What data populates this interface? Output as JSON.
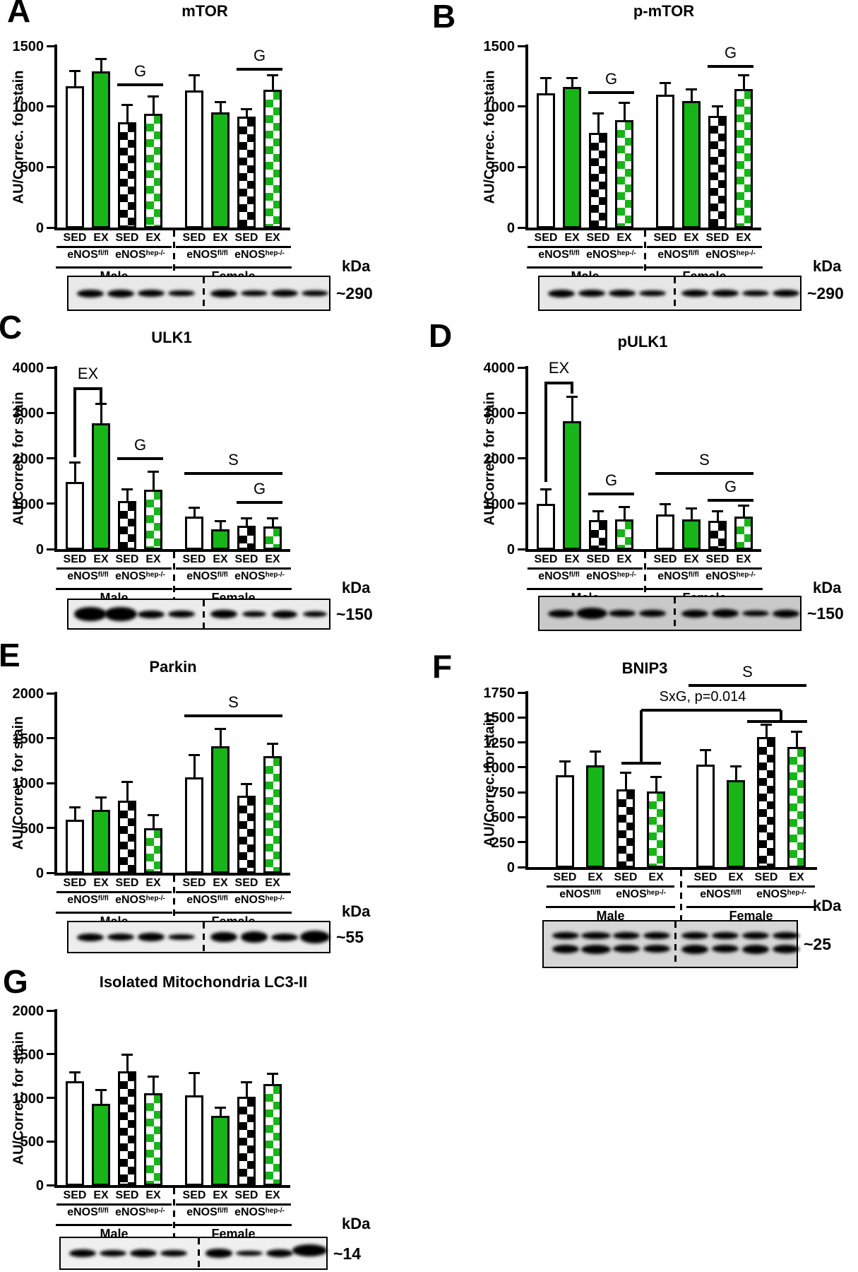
{
  "shared": {
    "kda_header": "kDa",
    "ylabel": "AU/Correc. for stain",
    "condition_labels": [
      "SED",
      "EX"
    ],
    "genotypes": [
      {
        "base": "eNOS",
        "sup": "fl/fl"
      },
      {
        "base": "eNOS",
        "sup": "hep-/-"
      }
    ],
    "sexes": [
      "Male",
      "Female"
    ],
    "bar_styles": [
      "open",
      "green",
      "bcheck",
      "gcheck",
      "open",
      "green",
      "bcheck",
      "gcheck"
    ],
    "accent_green": "#17b517",
    "categories": [
      "Male eNOSfl/fl SED",
      "Male eNOSfl/fl EX",
      "Male eNOShep-/- SED",
      "Male eNOShep-/- EX",
      "Female eNOSfl/fl SED",
      "Female eNOSfl/fl EX",
      "Female eNOShep-/- SED",
      "Female eNOShep-/- EX"
    ]
  },
  "chart_data": [
    {
      "panel": "A",
      "type": "bar",
      "title": "mTOR",
      "ylabel": "AU/Correc. for stain",
      "ylim": [
        0,
        1500
      ],
      "yticks": [
        "0",
        "500",
        "1000",
        "1500"
      ],
      "categories": [
        "Male eNOSfl/fl SED",
        "Male eNOSfl/fl EX",
        "Male eNOShep-/- SED",
        "Male eNOShep-/- EX",
        "Female eNOSfl/fl SED",
        "Female eNOSfl/fl EX",
        "Female eNOShep-/- SED",
        "Female eNOShep-/- EX"
      ],
      "values": [
        1170,
        1290,
        870,
        940,
        1130,
        950,
        915,
        1140
      ],
      "errors": [
        120,
        100,
        140,
        140,
        125,
        85,
        60,
        115
      ],
      "sig": [
        {
          "type": "line",
          "label": "G",
          "a": 2,
          "b": 3,
          "y": 1180
        },
        {
          "type": "line",
          "label": "G",
          "a": 6,
          "b": 7,
          "y": 1310
        }
      ],
      "blot": {
        "kda_label": "~290",
        "bg": "#e9e9e9",
        "bands": [
          [
            0.95,
            1,
            1,
            0
          ],
          [
            0.8,
            1,
            1,
            0
          ],
          [
            0.62,
            1,
            0.9,
            0
          ],
          [
            0.5,
            1,
            0.8,
            0
          ],
          [
            0.88,
            1,
            1,
            0
          ],
          [
            0.55,
            1,
            0.8,
            0
          ],
          [
            0.78,
            1,
            0.95,
            0
          ],
          [
            0.58,
            1,
            0.8,
            0
          ]
        ]
      }
    },
    {
      "panel": "B",
      "type": "bar",
      "title": "p-mTOR",
      "ylabel": "AU/Correc. for stain",
      "ylim": [
        0,
        1500
      ],
      "yticks": [
        "0",
        "500",
        "1000",
        "1500"
      ],
      "categories": [
        "Male eNOSfl/fl SED",
        "Male eNOSfl/fl EX",
        "Male eNOShep-/- SED",
        "Male eNOShep-/- EX",
        "Female eNOSfl/fl SED",
        "Female eNOSfl/fl EX",
        "Female eNOShep-/- SED",
        "Female eNOShep-/- EX"
      ],
      "values": [
        1110,
        1160,
        780,
        890,
        1100,
        1045,
        920,
        1145
      ],
      "errors": [
        125,
        75,
        160,
        140,
        95,
        95,
        80,
        110
      ],
      "sig": [
        {
          "type": "line",
          "label": "G",
          "a": 2,
          "b": 3,
          "y": 1115
        },
        {
          "type": "line",
          "label": "G",
          "a": 6,
          "b": 7,
          "y": 1330
        }
      ],
      "blot": {
        "kda_label": "~290",
        "bg": "#e7e7e7",
        "bands": [
          [
            0.9,
            1,
            1,
            0
          ],
          [
            0.78,
            1,
            0.9,
            0
          ],
          [
            0.78,
            1,
            0.9,
            0
          ],
          [
            0.55,
            1,
            0.8,
            0
          ],
          [
            0.82,
            1,
            0.9,
            0
          ],
          [
            0.68,
            1,
            0.85,
            0
          ],
          [
            0.62,
            1,
            0.8,
            0
          ],
          [
            0.85,
            1,
            0.95,
            0
          ]
        ]
      }
    },
    {
      "panel": "C",
      "type": "bar",
      "title": "ULK1",
      "ylabel": "AU/Correc. for stain",
      "ylim": [
        0,
        4000
      ],
      "yticks": [
        "0",
        "1000",
        "2000",
        "3000",
        "4000"
      ],
      "categories": [
        "Male eNOSfl/fl SED",
        "Male eNOSfl/fl EX",
        "Male eNOShep-/- SED",
        "Male eNOShep-/- EX",
        "Female eNOSfl/fl SED",
        "Female eNOSfl/fl EX",
        "Female eNOShep-/- SED",
        "Female eNOShep-/- EX"
      ],
      "values": [
        1480,
        2770,
        1060,
        1310,
        720,
        430,
        520,
        500
      ],
      "errors": [
        420,
        430,
        260,
        400,
        190,
        190,
        160,
        180
      ],
      "sig": [
        {
          "type": "exbracket",
          "label": "EX",
          "a": 0,
          "b": 1,
          "top": 3530,
          "adrop": 2020,
          "bdrop": 3220
        },
        {
          "type": "line",
          "label": "G",
          "a": 2,
          "b": 3,
          "y": 2000
        },
        {
          "type": "line",
          "label": "S",
          "a": 4,
          "b": 7,
          "y": 1670
        },
        {
          "type": "line",
          "label": "G",
          "a": 6,
          "b": 7,
          "y": 1030
        }
      ],
      "blot": {
        "kda_label": "~150",
        "bg": "#ececec",
        "bands": [
          [
            1,
            1.2,
            1.8,
            0
          ],
          [
            1,
            1.2,
            1.8,
            0
          ],
          [
            0.42,
            1,
            1,
            0
          ],
          [
            0.15,
            1,
            0.9,
            0
          ],
          [
            0.68,
            1,
            1.15,
            0
          ],
          [
            0.12,
            0.9,
            0.8,
            0
          ],
          [
            0.42,
            0.95,
            1,
            0
          ],
          [
            0.06,
            0.9,
            0.7,
            0
          ]
        ]
      }
    },
    {
      "panel": "D",
      "type": "bar",
      "title": "pULK1",
      "ylabel": "AU/Correc. for stain",
      "ylim": [
        0,
        4000
      ],
      "yticks": [
        "0",
        "1000",
        "2000",
        "3000",
        "4000"
      ],
      "categories": [
        "Male eNOSfl/fl SED",
        "Male eNOSfl/fl EX",
        "Male eNOShep-/- SED",
        "Male eNOShep-/- EX",
        "Female eNOSfl/fl SED",
        "Female eNOSfl/fl EX",
        "Female eNOShep-/- SED",
        "Female eNOShep-/- EX"
      ],
      "values": [
        1000,
        2810,
        640,
        660,
        770,
        660,
        630,
        710
      ],
      "errors": [
        320,
        540,
        200,
        260,
        220,
        240,
        210,
        240
      ],
      "sig": [
        {
          "type": "exbracket",
          "label": "EX",
          "a": 0,
          "b": 1,
          "top": 3660,
          "adrop": 1480,
          "bdrop": 3420
        },
        {
          "type": "line",
          "label": "G",
          "a": 2,
          "b": 3,
          "y": 1210
        },
        {
          "type": "line",
          "label": "S",
          "a": 4,
          "b": 7,
          "y": 1670
        },
        {
          "type": "line",
          "label": "G",
          "a": 6,
          "b": 7,
          "y": 1070
        }
      ],
      "blot": {
        "kda_label": "~150",
        "bg": "#c9c9c9",
        "bands": [
          [
            0.5,
            1,
            1,
            0
          ],
          [
            0.97,
            1.15,
            1.5,
            0
          ],
          [
            0.3,
            1,
            0.9,
            0
          ],
          [
            0.35,
            1,
            0.9,
            0
          ],
          [
            0.55,
            1,
            1,
            0
          ],
          [
            0.62,
            1,
            1.1,
            0
          ],
          [
            0.18,
            1,
            0.8,
            0
          ],
          [
            0.45,
            1,
            1,
            0
          ]
        ]
      }
    },
    {
      "panel": "E",
      "type": "bar",
      "title": "Parkin",
      "ylabel": "AU/Correc. for stain",
      "ylim": [
        0,
        2000
      ],
      "yticks": [
        "0",
        "500",
        "1000",
        "1500",
        "2000"
      ],
      "categories": [
        "Male eNOSfl/fl SED",
        "Male eNOSfl/fl EX",
        "Male eNOShep-/- SED",
        "Male eNOShep-/- EX",
        "Female eNOSfl/fl SED",
        "Female eNOSfl/fl EX",
        "Female eNOShep-/- SED",
        "Female eNOShep-/- EX"
      ],
      "values": [
        590,
        700,
        800,
        495,
        1060,
        1410,
        860,
        1300
      ],
      "errors": [
        140,
        140,
        210,
        145,
        250,
        190,
        125,
        140
      ],
      "sig": [
        {
          "type": "line",
          "label": "S",
          "a": 4,
          "b": 7,
          "y": 1750
        }
      ],
      "blot": {
        "kda_label": "~55",
        "bg": "#ededed",
        "bands": [
          [
            0.55,
            1,
            1,
            0
          ],
          [
            0.32,
            1,
            0.9,
            0
          ],
          [
            0.62,
            1,
            1.15,
            0
          ],
          [
            0.06,
            1,
            0.7,
            0
          ],
          [
            0.85,
            1,
            1.35,
            0
          ],
          [
            0.9,
            1,
            1.4,
            0
          ],
          [
            0.55,
            1,
            1,
            0
          ],
          [
            0.97,
            1.1,
            1.6,
            0
          ]
        ]
      }
    },
    {
      "panel": "F",
      "type": "bar",
      "title": "BNIP3",
      "ylabel": "AU/Correc. for stain",
      "ylim": [
        0,
        1750
      ],
      "yticks": [
        "0",
        "250",
        "500",
        "750",
        "1000",
        "1250",
        "1500",
        "1750"
      ],
      "categories": [
        "Male eNOSfl/fl SED",
        "Male eNOSfl/fl EX",
        "Male eNOShep-/- SED",
        "Male eNOShep-/- EX",
        "Female eNOSfl/fl SED",
        "Female eNOSfl/fl EX",
        "Female eNOShep-/- SED",
        "Female eNOShep-/- EX"
      ],
      "values": [
        920,
        1020,
        780,
        755,
        1030,
        870,
        1305,
        1205
      ],
      "errors": [
        140,
        135,
        165,
        150,
        145,
        140,
        120,
        155
      ],
      "sig": [
        {
          "type": "line",
          "label": "S",
          "a": 4,
          "b": 7,
          "y": 1820,
          "x1off": -10
        },
        {
          "type": "sxg",
          "label": "SxG, p=0.014"
        }
      ],
      "blot": {
        "kda_label": "~25",
        "bg": "#d6d6d6",
        "double": true,
        "bands": [
          [
            0.6,
            1,
            1,
            0
          ],
          [
            0.95,
            1.1,
            1.1,
            0
          ],
          [
            0.35,
            1,
            0.9,
            0
          ],
          [
            0.42,
            1,
            0.9,
            0
          ],
          [
            0.88,
            1,
            1.1,
            0
          ],
          [
            0.5,
            1,
            0.9,
            0
          ],
          [
            0.88,
            1,
            1.1,
            0
          ],
          [
            0.5,
            1,
            1,
            0
          ]
        ]
      }
    },
    {
      "panel": "G",
      "type": "bar",
      "title": "Isolated Mitochondria LC3-II",
      "ylabel": "AU/Correc. for stain",
      "ylim": [
        0,
        2000
      ],
      "yticks": [
        "0",
        "500",
        "1000",
        "1500",
        "2000"
      ],
      "categories": [
        "Male eNOSfl/fl SED",
        "Male eNOSfl/fl EX",
        "Male eNOShep-/- SED",
        "Male eNOShep-/- EX",
        "Female eNOSfl/fl SED",
        "Female eNOSfl/fl EX",
        "Female eNOShep-/- SED",
        "Female eNOShep-/- EX"
      ],
      "values": [
        1190,
        930,
        1300,
        1050,
        1030,
        790,
        1010,
        1155
      ],
      "errors": [
        100,
        160,
        190,
        190,
        250,
        100,
        165,
        120
      ],
      "sig": [],
      "blot": {
        "kda_label": "~14",
        "bg": "#f0f0f0",
        "bands": [
          [
            0.92,
            1,
            1,
            0
          ],
          [
            0.5,
            1,
            0.85,
            0
          ],
          [
            0.85,
            1,
            1,
            0
          ],
          [
            0.6,
            1,
            0.9,
            0
          ],
          [
            0.88,
            1,
            1.1,
            0
          ],
          [
            0.2,
            1,
            0.7,
            0
          ],
          [
            0.75,
            1,
            1,
            0
          ],
          [
            1,
            1.3,
            1.5,
            -4
          ]
        ]
      }
    }
  ]
}
